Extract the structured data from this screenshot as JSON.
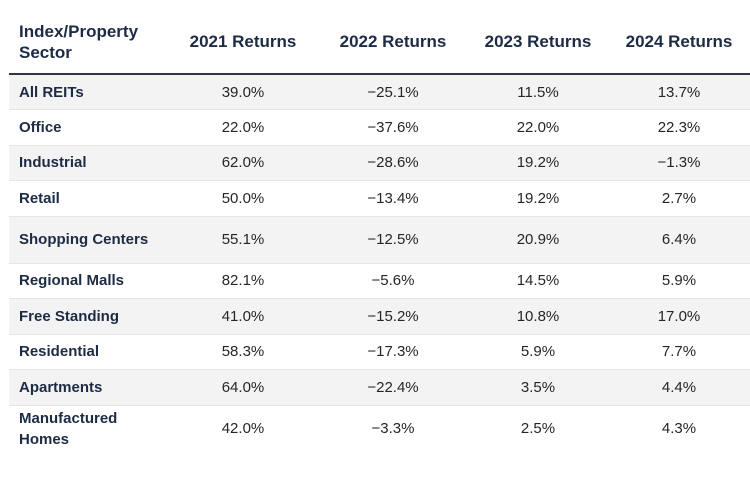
{
  "table": {
    "headers": [
      "Index/Property Sector",
      "2021 Returns",
      "2022 Returns",
      "2023 Returns",
      "2024 Returns"
    ],
    "rows": [
      [
        "All REITs",
        "39.0%",
        "−25.1%",
        "11.5%",
        "13.7%"
      ],
      [
        "Office",
        "22.0%",
        "−37.6%",
        "22.0%",
        "22.3%"
      ],
      [
        "Industrial",
        "62.0%",
        "−28.6%",
        "19.2%",
        "−1.3%"
      ],
      [
        "Retail",
        "50.0%",
        "−13.4%",
        "19.2%",
        "2.7%"
      ],
      [
        "Shopping Centers",
        "55.1%",
        "−12.5%",
        "20.9%",
        "6.4%"
      ],
      [
        "Regional Malls",
        "82.1%",
        "−5.6%",
        "14.5%",
        "5.9%"
      ],
      [
        "Free Standing",
        "41.0%",
        "−15.2%",
        "10.8%",
        "17.0%"
      ],
      [
        "Residential",
        "58.3%",
        "−17.3%",
        "5.9%",
        "7.7%"
      ],
      [
        "Apartments",
        "64.0%",
        "−22.4%",
        "3.5%",
        "4.4%"
      ],
      [
        "Manufactured Homes",
        "42.0%",
        "−3.3%",
        "2.5%",
        "4.3%"
      ]
    ]
  }
}
